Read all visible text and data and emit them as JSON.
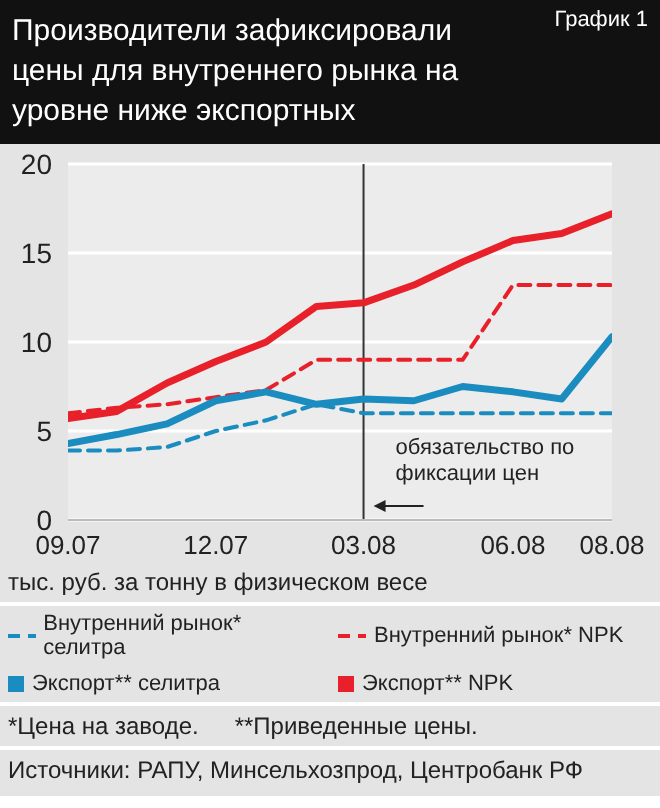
{
  "chart_data": {
    "type": "line",
    "title": "Производители зафиксировали цены для внутреннего рынка на уровне ниже экспортных",
    "ylabel": "тыс. руб. за тонну в физическом весе",
    "x": [
      "2007-09",
      "2007-10",
      "2007-11",
      "2007-12",
      "2008-01",
      "2008-02",
      "2008-03",
      "2008-04",
      "2008-05",
      "2008-06",
      "2008-07",
      "2008-08"
    ],
    "series": [
      {
        "name": "Внутренний рынок* селитра",
        "color": "#1a8cc0",
        "line_style": "dashed",
        "values": [
          3.9,
          3.9,
          4.1,
          5.0,
          5.6,
          6.5,
          6.0,
          6.0,
          6.0,
          6.0,
          6.0,
          6.0
        ]
      },
      {
        "name": "Внутренний рынок* NPK",
        "color": "#e8202a",
        "line_style": "dashed",
        "values": [
          6.0,
          6.3,
          6.5,
          6.9,
          7.3,
          9.0,
          9.0,
          9.0,
          9.0,
          13.2,
          13.2,
          13.2
        ]
      },
      {
        "name": "Экспорт** селитра",
        "color": "#1a8cc0",
        "line_style": "solid",
        "values": [
          4.3,
          4.8,
          5.4,
          6.7,
          7.2,
          6.5,
          6.8,
          6.7,
          7.5,
          7.2,
          6.8,
          10.3
        ]
      },
      {
        "name": "Экспорт** NPK",
        "color": "#e8202a",
        "line_style": "solid",
        "values": [
          5.7,
          6.1,
          7.7,
          8.9,
          10.0,
          12.0,
          12.2,
          13.2,
          14.5,
          15.7,
          16.1,
          17.2
        ]
      }
    ],
    "xlim": [
      "2007-09",
      "2008-08"
    ],
    "xticks": [
      {
        "value": "2007-09",
        "label": "09.07"
      },
      {
        "value": "2007-12",
        "label": "12.07"
      },
      {
        "value": "2008-03",
        "label": "03.08"
      },
      {
        "value": "2008-06",
        "label": "06.08"
      },
      {
        "value": "2008-08",
        "label": "08.08"
      }
    ],
    "ylim": [
      0,
      20
    ],
    "yticks": [
      0,
      5,
      10,
      15,
      20
    ],
    "grid": "y",
    "legend": "bottom",
    "marker": "none",
    "ref_lines": [
      {
        "axis": "x",
        "value": "2008-03",
        "label": "обязательство по фиксации цен",
        "color": "#333333"
      }
    ],
    "annotations": [
      "График 1",
      "*Цена на заводе.",
      "**Приведенные цены.",
      "Источники: РАПУ, Минсельхозпрод, Центробанк РФ"
    ]
  }
}
